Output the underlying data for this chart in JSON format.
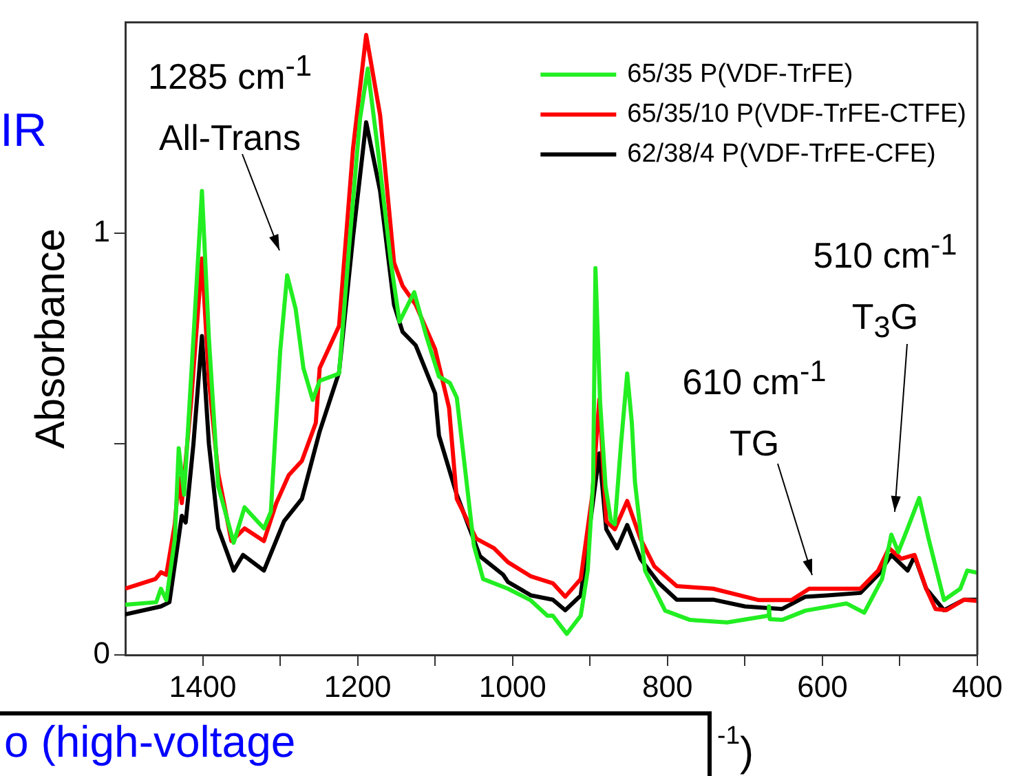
{
  "chart_data": {
    "type": "line",
    "ylabel": "Absorbance",
    "xlabel": "$^{-1}$)",
    "legend": "top right",
    "xlim": [
      1500,
      400
    ],
    "ylim": [
      0,
      1.5
    ],
    "xticks": [
      1400,
      {
        "value": 1300,
        "label": null
      },
      1200,
      {
        "value": 1100,
        "label": null
      },
      1000,
      {
        "value": 900,
        "label": null
      },
      800,
      {
        "value": 700,
        "label": null
      },
      600,
      {
        "value": 500,
        "label": null
      },
      400
    ],
    "yticks": [
      0,
      {
        "value": 0.5,
        "label": null
      },
      1
    ],
    "annotations": [
      "1285 cm$^{-1}$\nAll-Trans",
      "610 cm$^{-1}$\nTG",
      "510 cm$^{-1}$\nT$_{3}$G",
      "IR",
      "o (high-voltage"
    ],
    "series": [
      {
        "name": "65/35 P(VDF-TrFE)",
        "color": "#22ee22",
        "x": [
          1500,
          1460,
          1454,
          1447,
          1436,
          1431,
          1424,
          1412,
          1401,
          1392,
          1380,
          1360,
          1346,
          1321,
          1312,
          1300,
          1291,
          1280,
          1270,
          1258,
          1249,
          1224,
          1210,
          1197,
          1187,
          1174,
          1157,
          1146,
          1127,
          1112,
          1095,
          1081,
          1072,
          1060,
          1050,
          1038,
          1006,
          977,
          955,
          948,
          930,
          912,
          903,
          896,
          893,
          887,
          880,
          873,
          868,
          860,
          852,
          846,
          842,
          829,
          803,
          771,
          723,
          670,
          669,
          668,
          652,
          622,
          569,
          546,
          523,
          511,
          502,
          490,
          475,
          463,
          443,
          422,
          413,
          400
        ],
        "values": [
          0.119,
          0.125,
          0.157,
          0.13,
          0.275,
          0.49,
          0.38,
          0.75,
          1.1,
          0.75,
          0.4,
          0.266,
          0.35,
          0.3,
          0.34,
          0.72,
          0.9,
          0.82,
          0.68,
          0.605,
          0.65,
          0.667,
          0.99,
          1.27,
          1.39,
          1.2,
          0.93,
          0.79,
          0.86,
          0.76,
          0.66,
          0.645,
          0.61,
          0.42,
          0.26,
          0.18,
          0.157,
          0.13,
          0.093,
          0.093,
          0.05,
          0.093,
          0.2,
          0.41,
          0.917,
          0.6,
          0.4,
          0.318,
          0.31,
          0.5,
          0.667,
          0.55,
          0.41,
          0.2,
          0.105,
          0.083,
          0.077,
          0.093,
          0.115,
          0.085,
          0.083,
          0.105,
          0.122,
          0.1,
          0.18,
          0.285,
          0.244,
          0.3,
          0.372,
          0.276,
          0.13,
          0.157,
          0.2,
          0.195
        ]
      },
      {
        "name": "65/35/10 P(VDF-TrFE-CTFE)",
        "color": "#ff0000",
        "x": [
          1500,
          1461,
          1454,
          1447,
          1436,
          1431,
          1427,
          1415,
          1401,
          1392,
          1380,
          1363,
          1346,
          1321,
          1305,
          1289,
          1272,
          1254,
          1249,
          1224,
          1206,
          1189,
          1171,
          1153,
          1142,
          1125,
          1100,
          1082,
          1072,
          1047,
          1024,
          1006,
          976,
          948,
          932,
          912,
          897,
          888,
          879,
          868,
          852,
          835,
          817,
          788,
          741,
          682,
          640,
          617,
          594,
          551,
          528,
          514,
          498,
          481,
          466,
          454,
          440,
          417,
          400
        ],
        "values": [
          0.157,
          0.18,
          0.196,
          0.19,
          0.31,
          0.42,
          0.36,
          0.6,
          0.94,
          0.65,
          0.43,
          0.27,
          0.3,
          0.27,
          0.36,
          0.426,
          0.46,
          0.55,
          0.68,
          0.78,
          1.2,
          1.47,
          1.28,
          0.93,
          0.875,
          0.83,
          0.725,
          0.586,
          0.37,
          0.276,
          0.253,
          0.22,
          0.186,
          0.17,
          0.138,
          0.18,
          0.38,
          0.606,
          0.317,
          0.298,
          0.365,
          0.276,
          0.21,
          0.163,
          0.157,
          0.13,
          0.13,
          0.157,
          0.157,
          0.157,
          0.2,
          0.253,
          0.228,
          0.237,
          0.157,
          0.109,
          0.106,
          0.131,
          0.128
        ]
      },
      {
        "name": "62/38/4 P(VDF-TrFE-CFE)",
        "color": "#000000",
        "x": [
          1500,
          1454,
          1443,
          1427,
          1422,
          1412,
          1401,
          1392,
          1380,
          1360,
          1348,
          1321,
          1295,
          1272,
          1249,
          1224,
          1206,
          1189,
          1171,
          1153,
          1142,
          1125,
          1100,
          1095,
          1072,
          1042,
          1012,
          1006,
          976,
          948,
          932,
          912,
          895,
          888,
          879,
          865,
          852,
          835,
          811,
          788,
          741,
          700,
          652,
          622,
          594,
          551,
          528,
          511,
          490,
          481,
          466,
          443,
          417,
          400
        ],
        "values": [
          0.096,
          0.115,
          0.125,
          0.33,
          0.314,
          0.5,
          0.756,
          0.5,
          0.3,
          0.2,
          0.237,
          0.2,
          0.317,
          0.37,
          0.53,
          0.67,
          0.99,
          1.263,
          1.1,
          0.83,
          0.766,
          0.734,
          0.62,
          0.52,
          0.38,
          0.234,
          0.19,
          0.173,
          0.141,
          0.131,
          0.106,
          0.141,
          0.38,
          0.478,
          0.298,
          0.253,
          0.308,
          0.228,
          0.17,
          0.131,
          0.131,
          0.115,
          0.109,
          0.138,
          0.141,
          0.147,
          0.19,
          0.237,
          0.2,
          0.234,
          0.157,
          0.106,
          0.131,
          0.131
        ]
      }
    ]
  }
}
